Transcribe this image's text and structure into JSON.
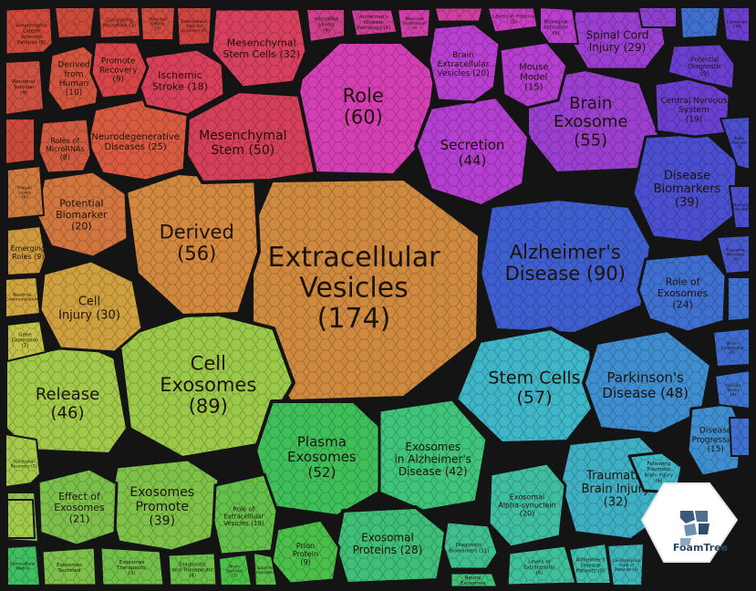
{
  "logo": {
    "text": "FoamTree",
    "icon": "foamtree-logo-icon"
  },
  "cells": [
    {
      "id": "extracellular-vesicles",
      "lines": [
        "Extracellular",
        "Vesicles",
        "(174)"
      ],
      "color": "#cf8a3f"
    },
    {
      "id": "alzheimers-disease",
      "lines": [
        "Alzheimer's",
        "Disease (90)"
      ],
      "color": "#3f5fd0"
    },
    {
      "id": "cell-exosomes",
      "lines": [
        "Cell",
        "Exosomes",
        "(89)"
      ],
      "color": "#9bc94a"
    },
    {
      "id": "role",
      "lines": [
        "Role",
        "(60)"
      ],
      "color": "#d43fb3"
    },
    {
      "id": "stem-cells",
      "lines": [
        "Stem Cells",
        "(57)"
      ],
      "color": "#3fb7c8"
    },
    {
      "id": "derived",
      "lines": [
        "Derived",
        "(56)"
      ],
      "color": "#d2883f"
    },
    {
      "id": "brain-exosome",
      "lines": [
        "Brain",
        "Exosome",
        "(55)"
      ],
      "color": "#9b3fd0"
    },
    {
      "id": "plasma-exosomes",
      "lines": [
        "Plasma",
        "Exosomes",
        "(52)"
      ],
      "color": "#3fbf5a"
    },
    {
      "id": "mesenchymal-stem",
      "lines": [
        "Mesenchymal",
        "Stem (50)"
      ],
      "color": "#d63f5a"
    },
    {
      "id": "parkinsons-disease",
      "lines": [
        "Parkinson's",
        "Disease (48)"
      ],
      "color": "#3f8fd0"
    },
    {
      "id": "release",
      "lines": [
        "Release",
        "(46)"
      ],
      "color": "#a2c94a"
    },
    {
      "id": "secretion",
      "lines": [
        "Secretion",
        "(44)"
      ],
      "color": "#b43fd0"
    },
    {
      "id": "exosomes-in-alzheimers",
      "lines": [
        "Exosomes",
        "in Alzheimer's",
        "Disease (42)"
      ],
      "color": "#3fc47a"
    },
    {
      "id": "disease-biomarkers",
      "lines": [
        "Disease",
        "Biomarkers",
        "(39)"
      ],
      "color": "#4a4fd0"
    },
    {
      "id": "exosomes-promote",
      "lines": [
        "Exosomes",
        "Promote",
        "(39)"
      ],
      "color": "#7fc24a"
    },
    {
      "id": "traumatic-brain-injury",
      "lines": [
        "Traumatic",
        "Brain Injury",
        "(32)"
      ],
      "color": "#3fb0c4"
    },
    {
      "id": "mesenchymal-stem-cells",
      "lines": [
        "Mesenchymal",
        "Stem Cells (32)"
      ],
      "color": "#d8405f"
    },
    {
      "id": "cell-injury",
      "lines": [
        "Cell",
        "Injury (30)"
      ],
      "color": "#cfa03f"
    },
    {
      "id": "spinal-cord-injury",
      "lines": [
        "Spinal Cord",
        "Injury (29)"
      ],
      "color": "#9a3fd0"
    },
    {
      "id": "exosomal-proteins",
      "lines": [
        "Exosomal",
        "Proteins (28)"
      ],
      "color": "#3fbf78"
    },
    {
      "id": "neurodegenerative-diseases",
      "lines": [
        "Neurodegenerative",
        "Diseases (25)"
      ],
      "color": "#d85a40"
    },
    {
      "id": "role-of-exosomes",
      "lines": [
        "Role of",
        "Exosomes",
        "(24)"
      ],
      "color": "#3f6fd0"
    },
    {
      "id": "effect-of-exosomes",
      "lines": [
        "Effect of",
        "Exosomes",
        "(21)"
      ],
      "color": "#7cbf4a"
    },
    {
      "id": "potential-biomarker",
      "lines": [
        "Potential",
        "Biomarker",
        "(20)"
      ],
      "color": "#d2763f"
    },
    {
      "id": "brain-extracellular-vesicles",
      "lines": [
        "Brain",
        "Extracellular",
        "Vesicles (20)"
      ],
      "color": "#b93fd0"
    },
    {
      "id": "exosomal-alpha-synuclein",
      "lines": [
        "Exosomal",
        "Alpha-synuclein",
        "(20)"
      ],
      "color": "#3fbfa0"
    },
    {
      "id": "ischemic-stroke",
      "lines": [
        "Ischemic",
        "Stroke (18)"
      ],
      "color": "#d8405a"
    },
    {
      "id": "central-nervous-system",
      "lines": [
        "Central Nervous",
        "System",
        "(19)"
      ],
      "color": "#6a3fd0"
    },
    {
      "id": "role-of-extracellular-vesicles",
      "lines": [
        "Role of",
        "Extracellular",
        "Vesicles (19)"
      ],
      "color": "#64c04a"
    },
    {
      "id": "mouse-model",
      "lines": [
        "Mouse",
        "Model",
        "(15)"
      ],
      "color": "#b43fd0"
    },
    {
      "id": "disease-progression",
      "lines": [
        "Disease",
        "Progression",
        "(15)"
      ],
      "color": "#3f8fd0"
    },
    {
      "id": "derived-from-human",
      "lines": [
        "Derived",
        "from",
        "Human",
        "(10)"
      ],
      "color": "#d2543f"
    },
    {
      "id": "promote-recovery",
      "lines": [
        "Promote",
        "Recovery",
        "(9)"
      ],
      "color": "#d84548"
    },
    {
      "id": "roles-of-micrornas",
      "lines": [
        "Roles of",
        "MicroRNAs",
        "(8)"
      ],
      "color": "#d05a3f"
    },
    {
      "id": "emerging-roles",
      "lines": [
        "Emerging",
        "Roles (9)"
      ],
      "color": "#cf9a3f"
    },
    {
      "id": "prion-protein",
      "lines": [
        "Prion",
        "Protein",
        "(9)"
      ],
      "color": "#4abf4a"
    },
    {
      "id": "potential-diagnostic",
      "lines": [
        "Potential",
        "Diagnostic",
        "(9)"
      ],
      "color": "#6a3fd0"
    },
    {
      "id": "protein-levels",
      "lines": [
        "Protein",
        "Levels",
        "(6)"
      ],
      "color": "#cf7a3f"
    },
    {
      "id": "amyotrophic-lateral-sclerosis",
      "lines": [
        "Amyotrophic",
        "Lateral",
        "Sclerosis",
        "Patients (6)"
      ],
      "color": "#cc4a3a"
    },
    {
      "id": "gene-expression",
      "lines": [
        "Gene",
        "Expression",
        "(7)"
      ],
      "color": "#c2c24a"
    },
    {
      "id": "functional-recovery",
      "lines": [
        "Functional",
        "Recovery (5)"
      ],
      "color": "#a5c94a"
    },
    {
      "id": "diagnostic-biomarkers",
      "lines": [
        "Diagnostic",
        "Biomarkers (11)"
      ],
      "color": "#3fbf90"
    },
    {
      "id": "levels-in-plasma",
      "lines": [
        "Levels in Plasma",
        "(5)"
      ],
      "color": "#c83fc0"
    },
    {
      "id": "microglial-activation",
      "lines": [
        "Microglial",
        "Activation",
        "(5)"
      ],
      "color": "#b83fcf"
    },
    {
      "id": "microrna-levels",
      "lines": [
        "microRNA",
        "Levels",
        "(4)"
      ],
      "color": "#cf3f8a"
    },
    {
      "id": "alzheimers-disease-pathology",
      "lines": [
        "Alzheimer's",
        "Disease",
        "Pathology (6)"
      ],
      "color": "#cf3f9a"
    },
    {
      "id": "neuronal-survival",
      "lines": [
        "Neuronal",
        "Survival",
        "(4)"
      ],
      "color": "#cc5040"
    },
    {
      "id": "brain-tumors",
      "lines": [
        "Brain",
        "Tumors",
        "(7)"
      ],
      "color": "#4a4fcf"
    },
    {
      "id": "human-brain",
      "lines": [
        "Human",
        "Brain",
        "(4)"
      ],
      "color": "#3f74cf"
    },
    {
      "id": "brain-endothelial",
      "lines": [
        "Brain",
        "Endothelial",
        "(4)"
      ],
      "color": "#3f6ccf"
    },
    {
      "id": "circulating-microrna",
      "lines": [
        "Circulating",
        "MicroRNA (3)"
      ],
      "color": "#cf4a3f"
    },
    {
      "id": "extracellular-vesicles-enriched",
      "lines": [
        "Extracellular",
        "Vesicles",
        "Enriched (3)"
      ],
      "color": "#d0443f"
    },
    {
      "id": "potential-effects",
      "lines": [
        "Potential",
        "Effects",
        "(3)"
      ],
      "color": "#cf4a40"
    },
    {
      "id": "neuronal-endosomal",
      "lines": [
        "Neuronal",
        "Endosomal",
        "(4)"
      ],
      "color": "#cf3fa8"
    },
    {
      "id": "following-traumatic-brain-injury",
      "lines": [
        "Following",
        "Traumatic",
        "Brain Injury",
        "(6)"
      ],
      "color": "#3fb6c8"
    },
    {
      "id": "neuronal-communication",
      "lines": [
        "Neuronal",
        "Communication"
      ],
      "color": "#cfa53f"
    },
    {
      "id": "exosome-mimetics",
      "lines": [
        "Exosome",
        "Mimetics",
        "(4)"
      ],
      "color": "#4a58cf"
    },
    {
      "id": "levels-of-extracellular",
      "lines": [
        "Levels of",
        "Extracellular",
        "(6)"
      ],
      "color": "#3fbf9a"
    },
    {
      "id": "alzheimers-disease-patients",
      "lines": [
        "Alzheimer's",
        "Disease",
        "Patients (5)"
      ],
      "color": "#3fbcaa"
    },
    {
      "id": "cerebrospinal-fluid-patients",
      "lines": [
        "Cerebrospinal",
        "Fluid of",
        "Patients (3)"
      ],
      "color": "#3fb4b8"
    },
    {
      "id": "diagnostic-and-therapeutic",
      "lines": [
        "Diagnostic",
        "and Therapeutic",
        "(4)"
      ],
      "color": "#6cbf4a"
    },
    {
      "id": "exosomes-therapeutic",
      "lines": [
        "Exosomes",
        "Therapeutic",
        "(3)"
      ],
      "color": "#72c04a"
    },
    {
      "id": "brain-derived",
      "lines": [
        "Brain",
        "Derived",
        "(3)"
      ],
      "color": "#4cbf4a"
    },
    {
      "id": "exosomes-neuroprotective",
      "lines": [
        "Exosomes",
        "Neuroprotective"
      ],
      "color": "#58c04a"
    },
    {
      "id": "neural-exosomes",
      "lines": [
        "Neural",
        "Exosomes"
      ],
      "color": "#3fbf7a"
    },
    {
      "id": "extracellular-matrix",
      "lines": [
        "Extracellular",
        "Matrix"
      ],
      "color": "#3fbf60"
    },
    {
      "id": "exosomes-secreted",
      "lines": [
        "Exosomes",
        "Secreted"
      ],
      "color": "#7dc04a"
    },
    {
      "id": "exosomes-promote-recovery",
      "lines": [
        "Exosomes",
        "Promote"
      ],
      "color": "#8cc24a"
    },
    {
      "id": "exosomes-cns",
      "lines": [
        "Exosomes",
        "CNS"
      ],
      "color": "#6a3fd0"
    },
    {
      "id": "neuronal-function",
      "lines": [
        "Neuronal",
        "Function"
      ],
      "color": "#4a4fcf"
    },
    {
      "id": "small-1",
      "lines": [
        "..."
      ],
      "color": "#cc4a3a"
    },
    {
      "id": "small-2",
      "lines": [
        "...."
      ],
      "color": "#cc4a3a"
    },
    {
      "id": "small-3",
      "lines": [
        "..."
      ],
      "color": "#cf3fa0"
    },
    {
      "id": "small-4",
      "lines": [
        "..."
      ],
      "color": "#a2c94a"
    },
    {
      "id": "small-5",
      "lines": [
        "..."
      ],
      "color": "#3f6fd0"
    },
    {
      "id": "small-6",
      "lines": [
        "..."
      ],
      "color": "#3f6fd0"
    },
    {
      "id": "small-7",
      "lines": [
        "..."
      ],
      "color": "#3f6fd0"
    },
    {
      "id": "small-8",
      "lines": [
        "..."
      ],
      "color": "#8c3fd0"
    }
  ]
}
